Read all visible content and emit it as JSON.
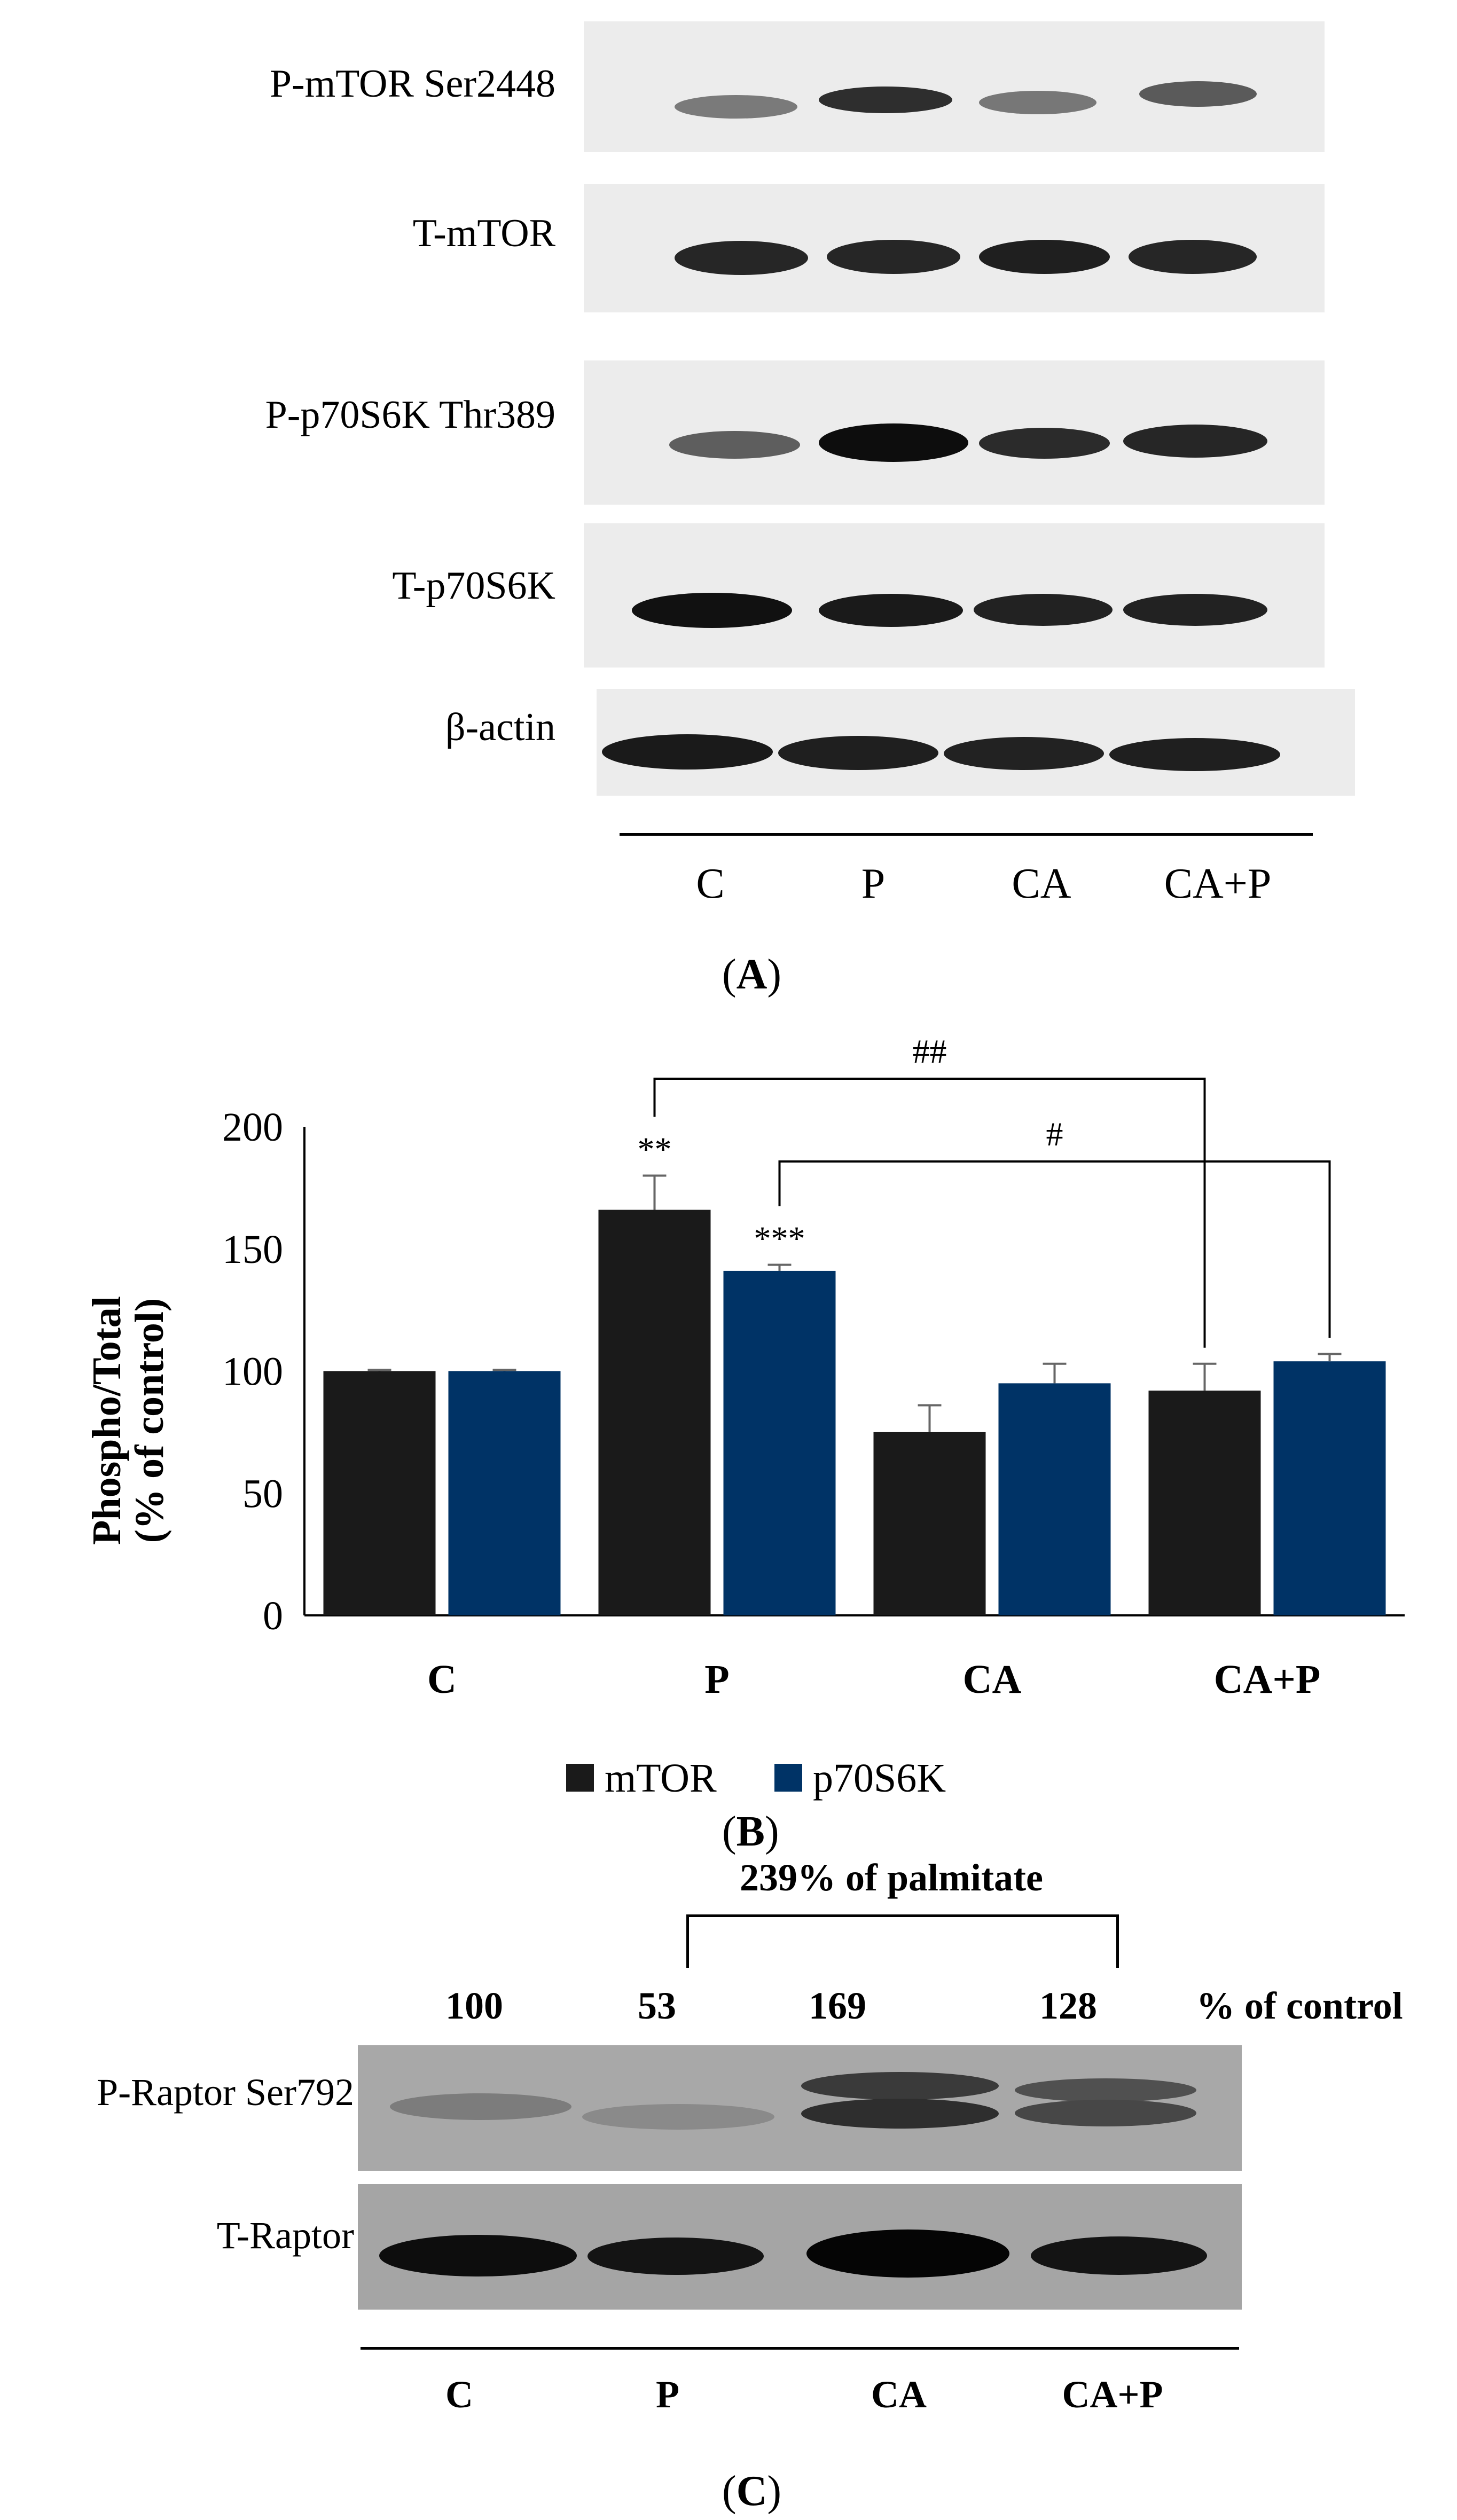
{
  "panel_a": {
    "rows": [
      {
        "label": "P-mTOR Ser2448"
      },
      {
        "label": "T-mTOR"
      },
      {
        "label": "P-p70S6K Thr389"
      },
      {
        "label": "T-p70S6K"
      },
      {
        "label": "β-actin"
      }
    ],
    "lanes": [
      "C",
      "P",
      "CA",
      "CA+P"
    ],
    "caption_open": "(",
    "caption_letter": "A",
    "caption_close": ")"
  },
  "panel_b": {
    "caption_open": "(",
    "caption_letter": "B",
    "caption_close": ")",
    "colors": {
      "mTOR": "#1a1a1a",
      "p70S6K": "#003366"
    }
  },
  "chart_data": {
    "type": "bar",
    "categories": [
      "C",
      "P",
      "CA",
      "CA+P"
    ],
    "series": [
      {
        "name": "mTOR",
        "values": [
          100,
          166,
          75,
          92
        ],
        "errors": [
          0.5,
          14,
          11,
          11
        ],
        "marks": [
          "",
          "**",
          "",
          ""
        ]
      },
      {
        "name": "p70S6K",
        "values": [
          100,
          141,
          95,
          104
        ],
        "errors": [
          0.5,
          2.5,
          8,
          3
        ],
        "marks": [
          "",
          "***",
          "",
          ""
        ]
      }
    ],
    "ylabel_line1": "Phospho/Total",
    "ylabel_line2": "(% of control)",
    "ylim": [
      0,
      200
    ],
    "yticks": [
      "0",
      "50",
      "100",
      "150",
      "200"
    ],
    "brackets": [
      {
        "label": "##",
        "from_category": 1,
        "from_series": 0,
        "to_category": 3,
        "to_series": 0
      },
      {
        "label": "#",
        "from_category": 1,
        "from_series": 1,
        "to_category": 3,
        "to_series": 1
      }
    ],
    "grid": false,
    "legend": "bottom"
  },
  "panel_c": {
    "rows": [
      {
        "label": "P-Raptor Ser792"
      },
      {
        "label": "T-Raptor"
      }
    ],
    "lanes": [
      "C",
      "P",
      "CA",
      "CA+P"
    ],
    "values": [
      "100",
      "53",
      "169",
      "128"
    ],
    "unit": "% of control",
    "bracket_label": "239% of palmitate",
    "caption_open": "(",
    "caption_letter": "C",
    "caption_close": ")"
  }
}
